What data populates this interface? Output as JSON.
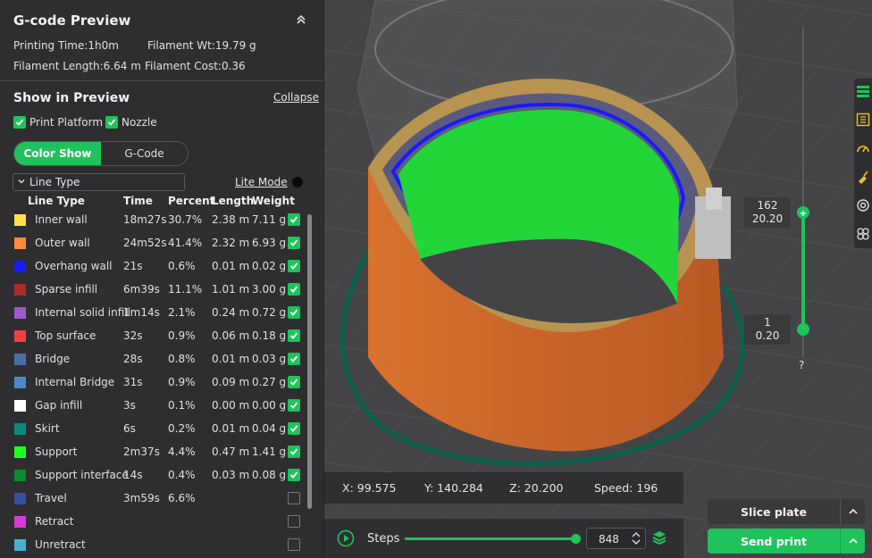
{
  "panel": {
    "title": "G-code Preview",
    "printing_time_label": "Printing Time:1h0m",
    "filament_wt_label": "Filament Wt:19.79 g",
    "filament_length_label": "Filament Length:6.64 m",
    "filament_cost_label": "Filament Cost:0.36",
    "show_in_preview": "Show in Preview",
    "collapse": "Collapse",
    "print_platform": "Print Platform",
    "nozzle": "Nozzle",
    "tabs": [
      "Color Show",
      "G-Code"
    ],
    "line_type_select": "Line Type",
    "lite_mode": "Lite Mode",
    "columns": [
      "Line Type",
      "Time",
      "Percent",
      "Length",
      "Weight"
    ],
    "rows": [
      {
        "name": "Inner wall",
        "color": "#ffe04a",
        "time": "18m27s",
        "percent": "30.7%",
        "length": "2.38 m",
        "weight": "7.11 g",
        "checked": true
      },
      {
        "name": "Outer wall",
        "color": "#ff8a3c",
        "time": "24m52s",
        "percent": "41.4%",
        "length": "2.32 m",
        "weight": "6.93 g",
        "checked": true
      },
      {
        "name": "Overhang wall",
        "color": "#1a1aff",
        "time": "21s",
        "percent": "0.6%",
        "length": "0.01 m",
        "weight": "0.02 g",
        "checked": true
      },
      {
        "name": "Sparse infill",
        "color": "#b02a2a",
        "time": "6m39s",
        "percent": "11.1%",
        "length": "1.01 m",
        "weight": "3.00 g",
        "checked": true
      },
      {
        "name": "Internal solid infill",
        "color": "#9b59d0",
        "time": "1m14s",
        "percent": "2.1%",
        "length": "0.24 m",
        "weight": "0.72 g",
        "checked": true
      },
      {
        "name": "Top surface",
        "color": "#f04040",
        "time": "32s",
        "percent": "0.9%",
        "length": "0.06 m",
        "weight": "0.18 g",
        "checked": true
      },
      {
        "name": "Bridge",
        "color": "#4a6fa5",
        "time": "28s",
        "percent": "0.8%",
        "length": "0.01 m",
        "weight": "0.03 g",
        "checked": true
      },
      {
        "name": "Internal Bridge",
        "color": "#4f86c6",
        "time": "31s",
        "percent": "0.9%",
        "length": "0.09 m",
        "weight": "0.27 g",
        "checked": true
      },
      {
        "name": "Gap infill",
        "color": "#ffffff",
        "time": "3s",
        "percent": "0.1%",
        "length": "0.00 m",
        "weight": "0.00 g",
        "checked": true
      },
      {
        "name": "Skirt",
        "color": "#0f8a7a",
        "time": "6s",
        "percent": "0.2%",
        "length": "0.01 m",
        "weight": "0.04 g",
        "checked": true
      },
      {
        "name": "Support",
        "color": "#22ff22",
        "time": "2m37s",
        "percent": "4.4%",
        "length": "0.47 m",
        "weight": "1.41 g",
        "checked": true
      },
      {
        "name": "Support interface",
        "color": "#0a8a2a",
        "time": "14s",
        "percent": "0.4%",
        "length": "0.03 m",
        "weight": "0.08 g",
        "checked": true
      },
      {
        "name": "Travel",
        "color": "#3a4fa0",
        "time": "3m59s",
        "percent": "6.6%",
        "length": "",
        "weight": "",
        "checked": false
      },
      {
        "name": "Retract",
        "color": "#d63ad6",
        "time": "",
        "percent": "",
        "length": "",
        "weight": "",
        "checked": false
      },
      {
        "name": "Unretract",
        "color": "#4ab0d0",
        "time": "",
        "percent": "",
        "length": "",
        "weight": "",
        "checked": false
      }
    ]
  },
  "layer_slider": {
    "top_layer": "162",
    "top_height": "20.20",
    "bottom_layer": "1",
    "bottom_height": "0.20",
    "help": "?"
  },
  "coords": {
    "x": "X: 99.575",
    "y": "Y: 140.284",
    "z": "Z: 20.200",
    "speed": "Speed: 196"
  },
  "steps": {
    "label": "Steps",
    "value": "848",
    "fraction": 1.0
  },
  "buttons": {
    "slice_plate": "Slice plate",
    "send_print": "Send print"
  },
  "right_toolbar_icons": [
    "layers-icon",
    "grid-icon",
    "speedometer-icon",
    "brush-icon",
    "target-icon",
    "flower-icon"
  ],
  "colors": {
    "accent": "#1fc35b",
    "panel_bg": "#2e2e30",
    "viewport_bg": "#444447"
  }
}
